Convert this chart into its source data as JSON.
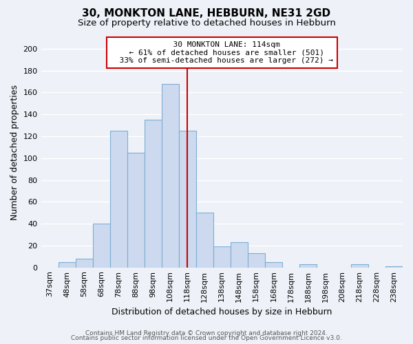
{
  "title": "30, MONKTON LANE, HEBBURN, NE31 2GD",
  "subtitle": "Size of property relative to detached houses in Hebburn",
  "xlabel": "Distribution of detached houses by size in Hebburn",
  "ylabel": "Number of detached properties",
  "bar_labels": [
    "37sqm",
    "48sqm",
    "58sqm",
    "68sqm",
    "78sqm",
    "88sqm",
    "98sqm",
    "108sqm",
    "118sqm",
    "128sqm",
    "138sqm",
    "148sqm",
    "158sqm",
    "168sqm",
    "178sqm",
    "188sqm",
    "198sqm",
    "208sqm",
    "218sqm",
    "228sqm",
    "238sqm"
  ],
  "bar_heights": [
    0,
    5,
    8,
    40,
    125,
    105,
    135,
    168,
    125,
    50,
    19,
    23,
    13,
    5,
    0,
    3,
    0,
    0,
    3,
    0,
    1
  ],
  "bar_color": "#ccd9ee",
  "bar_edgecolor": "#7daed4",
  "reference_line_x": 8.0,
  "annotation_title": "30 MONKTON LANE: 114sqm",
  "annotation_line1": "← 61% of detached houses are smaller (501)",
  "annotation_line2": "33% of semi-detached houses are larger (272) →",
  "annotation_box_edgecolor": "#cc0000",
  "annotation_box_facecolor": "#ffffff",
  "vline_color": "#cc0000",
  "ylim": [
    0,
    210
  ],
  "yticks": [
    0,
    20,
    40,
    60,
    80,
    100,
    120,
    140,
    160,
    180,
    200
  ],
  "footer_line1": "Contains HM Land Registry data © Crown copyright and database right 2024.",
  "footer_line2": "Contains public sector information licensed under the Open Government Licence v3.0.",
  "bg_color": "#eef2f8",
  "plot_bg_color": "#eef2f8",
  "grid_color": "#ffffff",
  "title_fontsize": 11,
  "subtitle_fontsize": 9.5,
  "axis_label_fontsize": 9,
  "tick_fontsize": 8,
  "annotation_fontsize": 8,
  "footer_fontsize": 6.5
}
